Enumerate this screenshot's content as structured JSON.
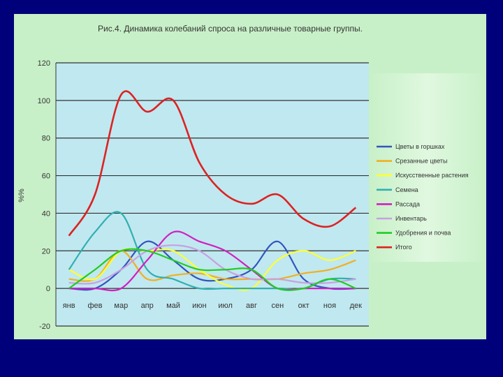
{
  "chart_data": {
    "type": "line",
    "title": "Рис.4. Динамика колебаний спроса на различные товарные группы.",
    "xlabel": "",
    "ylabel": "%%",
    "ylim": [
      -20,
      120
    ],
    "yticks": [
      -20,
      0,
      20,
      40,
      60,
      80,
      100,
      120
    ],
    "grid": true,
    "legend_position": "right",
    "categories": [
      "янв",
      "фев",
      "мар",
      "апр",
      "май",
      "июн",
      "июл",
      "авг",
      "сен",
      "окт",
      "ноя",
      "дек"
    ],
    "series": [
      {
        "name": "Цветы в горшках",
        "color": "#3355c0",
        "values": [
          0,
          0,
          10,
          25,
          15,
          5,
          5,
          10,
          25,
          5,
          0,
          0
        ]
      },
      {
        "name": "Срезанные цветы",
        "color": "#f0b020",
        "values": [
          5,
          5,
          20,
          5,
          7,
          8,
          5,
          5,
          5,
          8,
          10,
          15
        ]
      },
      {
        "name": "Искусственные растения",
        "color": "#ffff33",
        "values": [
          10,
          5,
          20,
          20,
          20,
          10,
          2,
          0,
          15,
          20,
          15,
          20
        ]
      },
      {
        "name": "Семена",
        "color": "#30b0b0",
        "values": [
          10,
          30,
          40,
          10,
          5,
          0,
          0,
          0,
          0,
          0,
          5,
          5
        ]
      },
      {
        "name": "Рассада",
        "color": "#d020c0",
        "values": [
          0,
          0,
          0,
          15,
          30,
          25,
          20,
          10,
          0,
          0,
          0,
          0
        ]
      },
      {
        "name": "Инвентарь",
        "color": "#c8a0e0",
        "values": [
          3,
          3,
          10,
          20,
          23,
          20,
          10,
          5,
          5,
          3,
          3,
          5
        ]
      },
      {
        "name": "Удобрения и почва",
        "color": "#22cc22",
        "values": [
          0,
          10,
          20,
          20,
          15,
          10,
          10,
          10,
          0,
          0,
          5,
          0
        ]
      },
      {
        "name": "Итого",
        "color": "#dd2222",
        "values": [
          28,
          50,
          103,
          94,
          100,
          67,
          50,
          45,
          50,
          37,
          33,
          43
        ]
      }
    ]
  }
}
